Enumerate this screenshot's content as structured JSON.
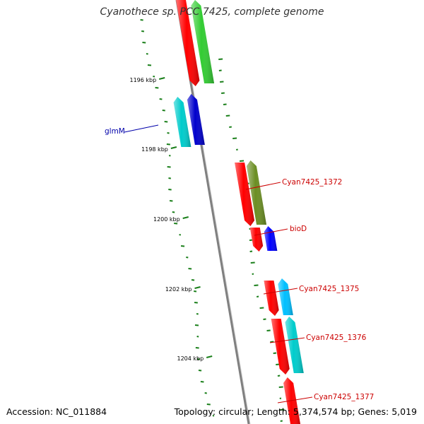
{
  "title": "Cyanothece sp. PCC 7425, complete genome",
  "footer": {
    "accession": "Accession: NC_011884",
    "summary": "Topology: circular; Length: 5,374,574 bp; Genes: 5,019"
  },
  "scale_labels": [
    "1196 kbp",
    "1198 kbp",
    "1200 kbp",
    "1202 kbp",
    "1204 kbp"
  ],
  "genes": [
    {
      "label": "",
      "color": "#ff0000"
    },
    {
      "label": "",
      "color": "#33cc33"
    },
    {
      "label": "glmM",
      "color": "#0000cc",
      "label_color": "#0000aa"
    },
    {
      "label": "",
      "color": "#00cccc"
    },
    {
      "label": "Cyan7425_1372",
      "color": "#ff0000",
      "label_color": "#cc0000"
    },
    {
      "label": "",
      "color": "#6b8e23"
    },
    {
      "label": "bioD",
      "color": "#ff0000",
      "label_color": "#cc0000"
    },
    {
      "label": "",
      "color": "#0000ff"
    },
    {
      "label": "Cyan7425_1375",
      "color": "#ff0000",
      "label_color": "#cc0000"
    },
    {
      "label": "",
      "color": "#00bfff"
    },
    {
      "label": "Cyan7425_1376",
      "color": "#ff0000",
      "label_color": "#cc0000"
    },
    {
      "label": "",
      "color": "#00cccc"
    },
    {
      "label": "Cyan7425_1377",
      "color": "#ff0000",
      "label_color": "#cc0000"
    }
  ],
  "colors": {
    "backbone": "#808080",
    "gc_skew": "#1a7f1a"
  }
}
